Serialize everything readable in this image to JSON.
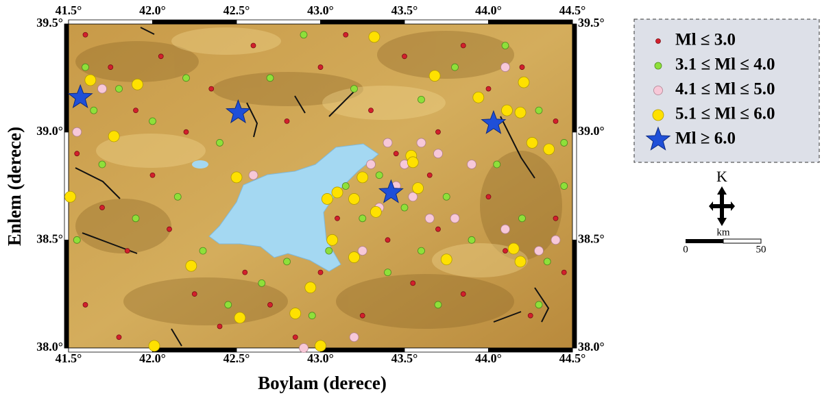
{
  "chart_data": {
    "type": "scatter",
    "xlabel": "Boylam (derece)",
    "ylabel": "Enlem (derece)",
    "xlim": [
      41.5,
      44.5
    ],
    "ylim": [
      38.0,
      39.5
    ],
    "xticks": [
      {
        "value": 41.5,
        "label": "41.5°"
      },
      {
        "value": 42.0,
        "label": "42.0°"
      },
      {
        "value": 42.5,
        "label": "42.5°"
      },
      {
        "value": 43.0,
        "label": "43.0°"
      },
      {
        "value": 43.5,
        "label": "43.5°"
      },
      {
        "value": 44.0,
        "label": "44.0°"
      },
      {
        "value": 44.5,
        "label": "44.5°"
      }
    ],
    "yticks": [
      {
        "value": 38.0,
        "label": "38.0°"
      },
      {
        "value": 38.5,
        "label": "38.5°"
      },
      {
        "value": 39.0,
        "label": "39.0°"
      },
      {
        "value": 39.5,
        "label": "39.5°"
      }
    ],
    "series": [
      {
        "name": "Ml ≤ 3.0",
        "color": "#d2202c",
        "marker": "circle",
        "x": [
          41.6,
          41.75,
          41.9,
          42.05,
          42.2,
          42.35,
          42.6,
          42.8,
          43.0,
          43.15,
          43.3,
          43.5,
          43.7,
          43.85,
          44.0,
          44.2,
          44.4,
          41.55,
          41.7,
          41.85,
          42.0,
          42.1,
          42.25,
          42.4,
          42.55,
          42.7,
          42.85,
          43.0,
          43.1,
          43.25,
          43.4,
          43.55,
          43.7,
          43.85,
          44.0,
          44.1,
          44.25,
          44.4,
          44.45,
          41.6,
          41.8,
          43.65,
          43.45
        ],
        "y": [
          39.45,
          39.3,
          39.1,
          39.35,
          39.0,
          39.2,
          39.4,
          39.05,
          39.3,
          39.45,
          39.1,
          39.35,
          39.0,
          39.4,
          39.2,
          39.3,
          39.05,
          38.9,
          38.65,
          38.45,
          38.8,
          38.55,
          38.25,
          38.1,
          38.35,
          38.2,
          38.05,
          38.35,
          38.6,
          38.15,
          38.5,
          38.3,
          38.55,
          38.25,
          38.7,
          38.45,
          38.15,
          38.6,
          38.35,
          38.2,
          38.05,
          38.8,
          38.9
        ]
      },
      {
        "name": "3.1 ≤ Ml ≤ 4.0",
        "color": "#8ee03a",
        "marker": "circle",
        "x": [
          41.6,
          41.65,
          41.8,
          42.0,
          42.2,
          42.4,
          42.7,
          42.9,
          43.2,
          43.6,
          43.8,
          44.1,
          44.3,
          44.45,
          41.7,
          41.9,
          42.15,
          42.3,
          42.45,
          42.65,
          42.8,
          42.95,
          43.05,
          43.15,
          43.25,
          43.35,
          43.5,
          43.6,
          43.75,
          43.9,
          44.05,
          44.2,
          44.35,
          44.3,
          43.7,
          43.4,
          41.55,
          44.45
        ],
        "y": [
          39.3,
          39.1,
          39.2,
          39.05,
          39.25,
          38.95,
          39.25,
          39.45,
          39.2,
          39.15,
          39.3,
          39.4,
          39.1,
          38.95,
          38.85,
          38.6,
          38.7,
          38.45,
          38.2,
          38.3,
          38.4,
          38.15,
          38.45,
          38.75,
          38.6,
          38.8,
          38.65,
          38.45,
          38.7,
          38.5,
          38.85,
          38.6,
          38.4,
          38.2,
          38.2,
          38.35,
          38.5,
          38.75
        ]
      },
      {
        "name": "4.1 ≤ Ml ≤ 5.0",
        "color": "#f7c8d8",
        "marker": "circle",
        "x": [
          41.7,
          41.55,
          42.6,
          43.3,
          43.4,
          43.45,
          43.5,
          43.55,
          43.6,
          43.65,
          43.7,
          43.35,
          43.8,
          43.9,
          44.1,
          44.3,
          44.4,
          43.2,
          42.9,
          44.1,
          43.25
        ],
        "y": [
          39.2,
          39.0,
          38.8,
          38.85,
          38.95,
          38.75,
          38.85,
          38.7,
          38.95,
          38.6,
          38.9,
          38.65,
          38.6,
          38.85,
          38.55,
          38.45,
          38.5,
          38.05,
          38.0,
          39.3,
          38.45
        ]
      },
      {
        "name": "5.1 ≤ Ml ≤ 6.0",
        "color": "#ffe100",
        "marker": "circle",
        "x": [
          43.32,
          43.68,
          41.63,
          41.91,
          43.94,
          44.11,
          44.19,
          44.21,
          41.77,
          44.26,
          44.36,
          43.54,
          43.55,
          42.5,
          43.25,
          43.58,
          41.51,
          43.04,
          43.1,
          43.2,
          43.33,
          43.07,
          44.15,
          43.2,
          43.75,
          44.19,
          42.23,
          42.94,
          42.85,
          42.52,
          42.01,
          43.0
        ],
        "y": [
          39.44,
          39.26,
          39.24,
          39.22,
          39.16,
          39.1,
          39.09,
          39.23,
          38.98,
          38.95,
          38.92,
          38.89,
          38.86,
          38.79,
          38.79,
          38.74,
          38.7,
          38.69,
          38.72,
          38.69,
          38.63,
          38.5,
          38.46,
          38.42,
          38.41,
          38.4,
          38.38,
          38.28,
          38.16,
          38.14,
          38.01,
          38.01
        ]
      },
      {
        "name": "Ml ≥ 6.0",
        "color": "#1f4fd8",
        "marker": "star",
        "x": [
          41.57,
          42.51,
          43.42,
          44.03
        ],
        "y": [
          39.16,
          39.09,
          38.72,
          39.04
        ]
      }
    ],
    "legend": "right",
    "north_label": "K",
    "scale_unit": "km",
    "scale_ticks": [
      0,
      50
    ]
  }
}
